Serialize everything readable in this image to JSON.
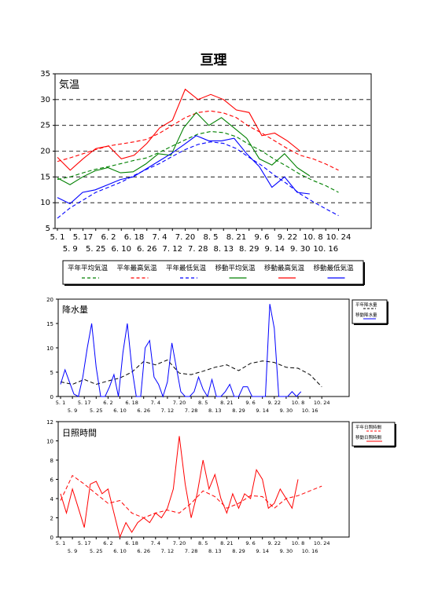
{
  "title": "亘理",
  "colors": {
    "avg": "#008000",
    "max": "#ff0000",
    "min": "#0000ff",
    "grid": "#000000",
    "precip_normal": "#000000",
    "precip_moving": "#0000ff",
    "sun_normal": "#ff0000",
    "sun_moving": "#ff0000"
  },
  "chart_data": [
    {
      "type": "line",
      "panel_label": "気温",
      "ylim": [
        5,
        35
      ],
      "yticks": [
        5,
        10,
        15,
        20,
        25,
        30,
        35
      ],
      "grid": "dashed-horizontal",
      "x_label_row1": [
        "5. 1",
        "5. 17",
        "6. 2",
        "6. 18",
        "7. 4",
        "7. 20",
        "8. 5",
        "8. 21",
        "9. 6",
        "9. 22",
        "10. 8",
        "10. 24"
      ],
      "x_label_row2": [
        "5. 9",
        "5. 25",
        "6. 10",
        "6. 26",
        "7. 12",
        "7. 28",
        "8. 13",
        "8. 29",
        "9. 14",
        "9. 30",
        "10. 16"
      ],
      "legend": [
        {
          "label": "平年平均気温",
          "color_key": "avg",
          "dash": true
        },
        {
          "label": "平年最高気温",
          "color_key": "max",
          "dash": true
        },
        {
          "label": "平年最低気温",
          "color_key": "min",
          "dash": true
        },
        {
          "label": "移動平均気温",
          "color_key": "avg",
          "dash": false
        },
        {
          "label": "移動最高気温",
          "color_key": "max",
          "dash": false
        },
        {
          "label": "移動最低気温",
          "color_key": "min",
          "dash": false
        }
      ],
      "x_days": [
        0,
        8,
        16,
        24,
        32,
        40,
        48,
        56,
        64,
        72,
        80,
        88,
        96,
        104,
        112,
        120,
        128,
        136,
        144,
        151,
        159,
        167,
        176
      ],
      "series": [
        {
          "key": "normal_avg",
          "values": [
            14.5,
            15.0,
            15.8,
            16.5,
            17.0,
            17.6,
            18.2,
            18.7,
            19.8,
            21.0,
            22.2,
            23.3,
            23.8,
            23.6,
            22.8,
            21.3,
            20.0,
            18.4,
            17.0,
            15.5,
            14.3,
            13.3,
            12.0
          ]
        },
        {
          "key": "normal_max",
          "values": [
            18.0,
            18.7,
            19.5,
            20.3,
            21.0,
            21.4,
            21.8,
            22.3,
            23.5,
            25.0,
            26.5,
            27.5,
            27.8,
            27.4,
            26.5,
            24.8,
            23.5,
            22.0,
            20.5,
            19.2,
            18.5,
            17.5,
            16.3
          ]
        },
        {
          "key": "normal_min",
          "values": [
            7.0,
            9.0,
            10.5,
            12.0,
            13.0,
            14.0,
            15.3,
            16.5,
            17.6,
            19.0,
            20.3,
            21.3,
            21.8,
            21.5,
            20.5,
            18.8,
            17.2,
            15.3,
            13.6,
            11.7,
            10.2,
            8.8,
            7.5
          ]
        },
        {
          "key": "moving_avg",
          "values": [
            14.8,
            13.5,
            15.0,
            16.2,
            16.8,
            15.8,
            16.0,
            17.5,
            19.5,
            19.2,
            24.5,
            27.5,
            25.0,
            26.5,
            24.5,
            22.5,
            18.5,
            17.3,
            19.5,
            16.8,
            15.2
          ]
        },
        {
          "key": "moving_max",
          "values": [
            18.8,
            16.3,
            18.5,
            20.5,
            21.0,
            18.5,
            19.2,
            21.5,
            24.5,
            26.0,
            32.0,
            30.0,
            31.0,
            30.0,
            28.0,
            27.5,
            23.0,
            23.5,
            22.0,
            20.0
          ]
        },
        {
          "key": "moving_min",
          "values": [
            11.0,
            9.8,
            12.0,
            12.5,
            13.5,
            14.5,
            15.0,
            16.5,
            18.0,
            19.5,
            21.2,
            23.0,
            22.0,
            22.0,
            22.5,
            19.5,
            17.0,
            13.0,
            15.0,
            12.0,
            11.7
          ]
        }
      ]
    },
    {
      "type": "line",
      "panel_label": "降水量",
      "ylim": [
        0,
        20
      ],
      "yticks": [
        0,
        5,
        10,
        15,
        20
      ],
      "x_label_row1": [
        "5. 1",
        "5. 17",
        "6. 2",
        "6. 18",
        "7. 4",
        "7. 20",
        "8. 5",
        "8. 21",
        "9. 6",
        "9. 22",
        "10. 8",
        "10. 24"
      ],
      "x_label_row2": [
        "5. 9",
        "5. 25",
        "6. 10",
        "6. 26",
        "7. 12",
        "7. 28",
        "8. 13",
        "8. 29",
        "9. 14",
        "9. 30",
        "10. 16"
      ],
      "legend": [
        {
          "label": "平年降水量",
          "color_key": "precip_normal",
          "dash": true
        },
        {
          "label": "移動降水量",
          "color_key": "precip_moving",
          "dash": false
        }
      ],
      "series": [
        {
          "key": "normal",
          "x": [
            0,
            8,
            16,
            24,
            32,
            40,
            48,
            56,
            64,
            72,
            80,
            88,
            96,
            104,
            112,
            120,
            128,
            136,
            144,
            152,
            160,
            168,
            176
          ],
          "values": [
            3.0,
            2.5,
            3.5,
            2.5,
            3.2,
            3.8,
            5.0,
            7.2,
            6.5,
            7.5,
            4.8,
            4.5,
            5.2,
            6.0,
            6.5,
            5.3,
            6.8,
            7.3,
            7.0,
            6.0,
            5.8,
            4.5,
            2.0
          ]
        },
        {
          "key": "moving",
          "x": [
            0,
            3,
            6,
            9,
            12,
            15,
            18,
            21,
            24,
            27,
            30,
            33,
            36,
            39,
            42,
            45,
            48,
            51,
            54,
            57,
            60,
            63,
            66,
            69,
            72,
            75,
            78,
            81,
            84,
            87,
            90,
            93,
            96,
            99,
            102,
            105,
            108,
            111,
            114,
            117,
            120,
            123,
            126,
            129,
            132,
            135,
            138,
            141,
            144,
            147,
            150,
            153,
            156,
            159,
            162
          ],
          "values": [
            2.5,
            5.5,
            3.0,
            0.5,
            0.0,
            4.0,
            10.0,
            15.0,
            6.0,
            0.0,
            0.0,
            2.0,
            4.5,
            0.0,
            9.0,
            15.0,
            6.0,
            0.0,
            0.0,
            10.0,
            11.5,
            4.0,
            2.5,
            0.0,
            3.0,
            11.0,
            6.0,
            1.0,
            0.0,
            0.0,
            1.0,
            4.0,
            1.5,
            0.0,
            3.5,
            0.0,
            0.0,
            1.0,
            2.5,
            0.0,
            0.0,
            2.0,
            2.0,
            0.0,
            0.0,
            0.0,
            0.0,
            19.0,
            14.0,
            0.0,
            0.0,
            0.0,
            1.0,
            0.0,
            1.0
          ]
        }
      ]
    },
    {
      "type": "line",
      "panel_label": "日照時間",
      "ylim": [
        0,
        12
      ],
      "yticks": [
        0,
        2,
        4,
        6,
        8,
        10,
        12
      ],
      "x_label_row1": [
        "5. 1",
        "5. 17",
        "6. 2",
        "6. 18",
        "7. 4",
        "7. 20",
        "8. 5",
        "8. 21",
        "9. 6",
        "9. 22",
        "10. 8",
        "10. 24"
      ],
      "x_label_row2": [
        "5. 9",
        "5. 25",
        "6. 10",
        "6. 26",
        "7. 12",
        "7. 28",
        "8. 13",
        "8. 29",
        "9. 14",
        "9. 30",
        "10. 16"
      ],
      "legend": [
        {
          "label": "平年日照時間",
          "color_key": "sun_normal",
          "dash": true
        },
        {
          "label": "移動日照時間",
          "color_key": "sun_moving",
          "dash": false
        }
      ],
      "series": [
        {
          "key": "normal",
          "x": [
            0,
            8,
            16,
            24,
            32,
            40,
            48,
            56,
            64,
            72,
            80,
            88,
            96,
            104,
            112,
            120,
            128,
            136,
            144,
            152,
            160,
            168,
            176
          ],
          "values": [
            3.8,
            6.4,
            5.5,
            4.5,
            3.5,
            3.8,
            2.5,
            2.0,
            2.5,
            2.8,
            2.5,
            3.5,
            4.8,
            4.2,
            3.0,
            3.5,
            4.3,
            4.2,
            3.0,
            4.0,
            4.3,
            4.8,
            5.3
          ]
        },
        {
          "key": "moving",
          "x": [
            0,
            4,
            8,
            12,
            16,
            20,
            24,
            28,
            32,
            36,
            40,
            44,
            48,
            52,
            56,
            60,
            64,
            68,
            72,
            76,
            80,
            84,
            88,
            92,
            96,
            100,
            104,
            108,
            112,
            116,
            120,
            124,
            128,
            132,
            136,
            140,
            144,
            148,
            152,
            156,
            160
          ],
          "values": [
            4.5,
            2.5,
            5.0,
            3.0,
            1.0,
            5.5,
            5.8,
            4.5,
            5.0,
            2.5,
            0.0,
            1.5,
            0.5,
            1.5,
            2.0,
            1.5,
            2.5,
            2.0,
            3.0,
            5.0,
            10.5,
            5.5,
            2.0,
            4.5,
            8.0,
            5.0,
            6.5,
            4.0,
            2.5,
            4.5,
            3.0,
            4.5,
            4.0,
            7.0,
            6.0,
            3.0,
            3.5,
            5.0,
            4.0,
            3.0,
            6.0
          ]
        }
      ]
    }
  ]
}
